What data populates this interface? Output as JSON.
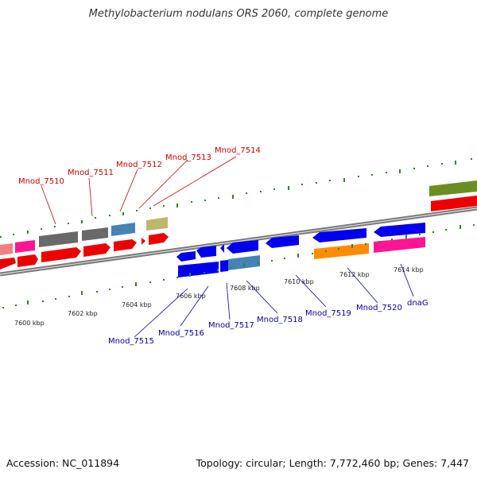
{
  "title": "Methylobacterium nodulans ORS 2060, complete genome",
  "footer": {
    "accession": "Accession: NC_011894",
    "topology": "Topology: circular; Length: 7,772,460 bp; Genes: 7,447"
  },
  "colors": {
    "top_label": "#cc0000",
    "bottom_label": "#0000aa",
    "tick": "#228b22",
    "backbone": "#777777"
  },
  "top_labels": [
    "Mnod_7510",
    "Mnod_7511",
    "Mnod_7512",
    "Mnod_7513",
    "Mnod_7514"
  ],
  "bottom_labels": [
    "Mnod_7515",
    "Mnod_7516",
    "Mnod_7517",
    "Mnod_7518",
    "Mnod_7519",
    "Mnod_7520",
    "dnaG"
  ],
  "scale_labels": [
    "7600 kbp",
    "7602 kbp",
    "7604 kbp",
    "7606 kbp",
    "7608 kbp",
    "7610 kbp",
    "7612 kbp",
    "7614 kbp"
  ]
}
